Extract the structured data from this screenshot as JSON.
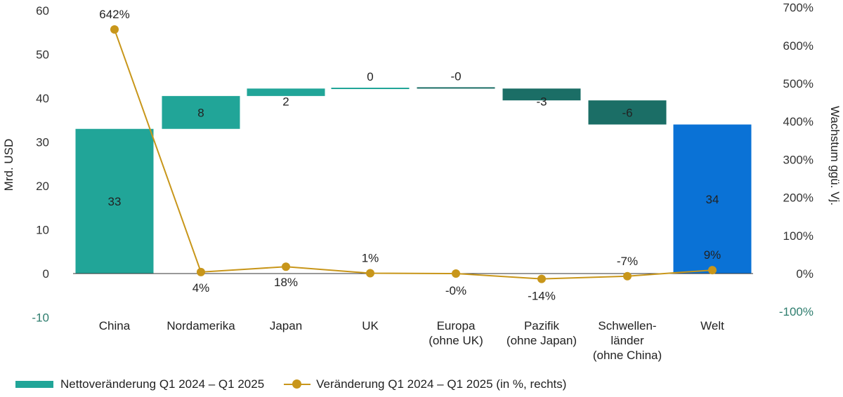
{
  "chart_data": {
    "type": "bar",
    "subtype": "waterfall-with-line",
    "categories": [
      [
        "China"
      ],
      [
        "Nordamerika"
      ],
      [
        "Japan"
      ],
      [
        "UK"
      ],
      [
        "Europa",
        "(ohne UK)"
      ],
      [
        "Pazifik",
        "(ohne Japan)"
      ],
      [
        "Schwellen-",
        "länder",
        "(ohne China)"
      ],
      [
        "Welt"
      ]
    ],
    "bars": {
      "name": "Nettoveränderung Q1 2024 – Q1 2025",
      "base": [
        0,
        33,
        40.5,
        42.2,
        42.2,
        39.5,
        34,
        0
      ],
      "top": [
        33,
        40.5,
        42.2,
        42.4,
        42.5,
        42.2,
        39.5,
        34
      ],
      "labels": [
        "33",
        "8",
        "2",
        "0",
        "-0",
        "-3",
        "-6",
        "34"
      ],
      "colors": [
        "#21a598",
        "#21a598",
        "#21a598",
        "#21a598",
        "#1b6e66",
        "#1b6e66",
        "#1b6e66",
        "#0a72d6"
      ]
    },
    "line": {
      "name": "Veränderung Q1 2024 – Q1 2025 (in %, rechts)",
      "values": [
        642,
        4,
        18,
        1,
        0,
        -14,
        -7,
        9
      ],
      "labels": [
        "642%",
        "4%",
        "18%",
        "1%",
        "-0%",
        "-14%",
        "-7%",
        "9%"
      ],
      "color": "#c8961a"
    },
    "y_left": {
      "label": "Mrd. USD",
      "lim": [
        -10,
        60
      ],
      "ticks": [
        "-10",
        "0",
        "10",
        "20",
        "30",
        "40",
        "50",
        "60"
      ]
    },
    "y_right": {
      "label": "Wachstum ggü. Vj.",
      "lim": [
        -100,
        700
      ],
      "ticks": [
        "-100%",
        "0%",
        "100%",
        "200%",
        "300%",
        "400%",
        "500%",
        "600%",
        "700%"
      ]
    },
    "legend": "bottom-left",
    "grid": false
  }
}
